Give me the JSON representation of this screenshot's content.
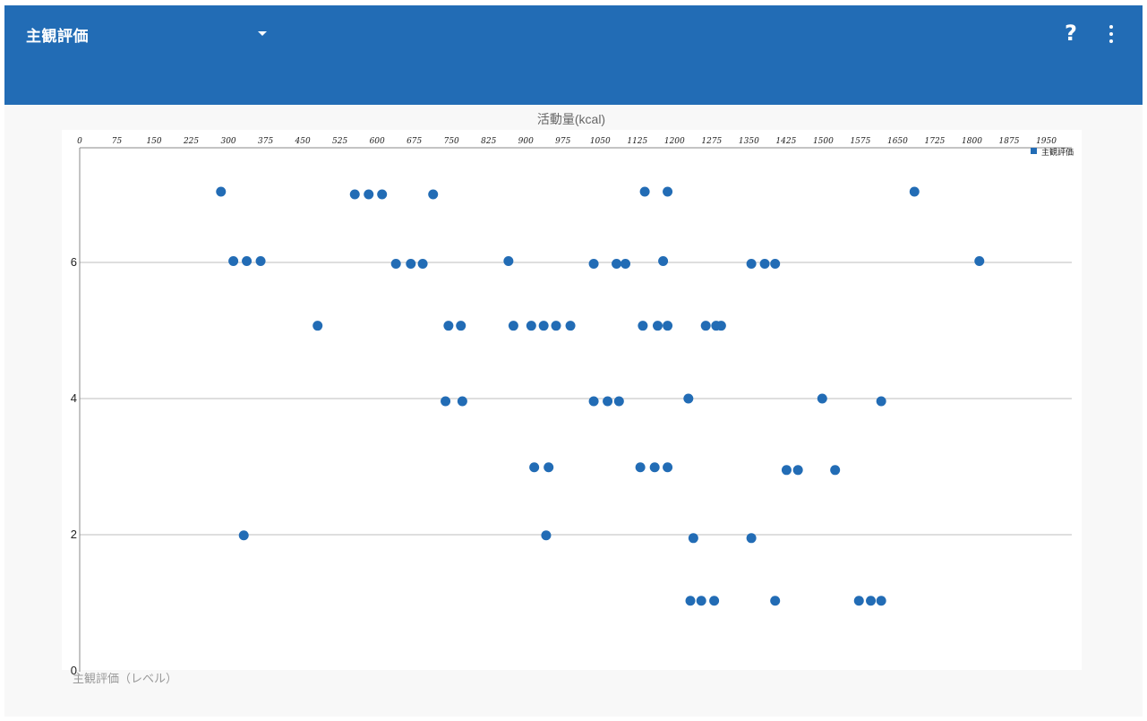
{
  "appbar": {
    "title": "主観評価",
    "help_label": "?",
    "background": "#226cb5",
    "dropdown_icon": "caret-down-icon",
    "more_icon": "more-vert-icon"
  },
  "chart_data": {
    "type": "scatter",
    "xlabel": "活動量(kcal)",
    "ylabel": "主観評価（レベル）",
    "xlim": [
      0,
      2000
    ],
    "ylim": [
      0,
      7.7
    ],
    "x_ticks": [
      "0",
      "75",
      "150",
      "225",
      "300",
      "375",
      "450",
      "525",
      "600",
      "675",
      "750",
      "825",
      "900",
      "975",
      "1050",
      "1125",
      "1200",
      "1275",
      "1350",
      "1425",
      "1500",
      "1575",
      "1650",
      "1725",
      "1800",
      "1875",
      "1950"
    ],
    "y_ticks": [
      "0",
      "2",
      "4",
      "6"
    ],
    "grid": "horizontal",
    "legend_position": "top-right",
    "color": "#226cb5",
    "series": [
      {
        "name": "主観評価",
        "points": [
          [
            285,
            7.04
          ],
          [
            555,
            7.0
          ],
          [
            583,
            7.0
          ],
          [
            610,
            7.0
          ],
          [
            713,
            7.0
          ],
          [
            1140,
            7.04
          ],
          [
            1186,
            7.04
          ],
          [
            1684,
            7.04
          ],
          [
            310,
            6.02
          ],
          [
            337,
            6.02
          ],
          [
            365,
            6.02
          ],
          [
            638,
            5.98
          ],
          [
            668,
            5.98
          ],
          [
            692,
            5.98
          ],
          [
            865,
            6.02
          ],
          [
            1037,
            5.98
          ],
          [
            1083,
            5.98
          ],
          [
            1101,
            5.98
          ],
          [
            1177,
            6.02
          ],
          [
            1355,
            5.98
          ],
          [
            1382,
            5.98
          ],
          [
            1403,
            5.98
          ],
          [
            1815,
            6.02
          ],
          [
            480,
            5.07
          ],
          [
            744,
            5.07
          ],
          [
            769,
            5.07
          ],
          [
            875,
            5.07
          ],
          [
            911,
            5.07
          ],
          [
            936,
            5.07
          ],
          [
            961,
            5.07
          ],
          [
            990,
            5.07
          ],
          [
            1136,
            5.07
          ],
          [
            1166,
            5.07
          ],
          [
            1186,
            5.07
          ],
          [
            1263,
            5.07
          ],
          [
            1284,
            5.07
          ],
          [
            1294,
            5.07
          ],
          [
            738,
            3.96
          ],
          [
            772,
            3.96
          ],
          [
            1037,
            3.96
          ],
          [
            1065,
            3.96
          ],
          [
            1088,
            3.96
          ],
          [
            1228,
            4.0
          ],
          [
            1498,
            4.0
          ],
          [
            1617,
            3.96
          ],
          [
            917,
            2.99
          ],
          [
            946,
            2.99
          ],
          [
            1131,
            2.99
          ],
          [
            1160,
            2.99
          ],
          [
            1186,
            2.99
          ],
          [
            1426,
            2.95
          ],
          [
            1449,
            2.95
          ],
          [
            1524,
            2.95
          ],
          [
            331,
            1.99
          ],
          [
            941,
            1.99
          ],
          [
            1238,
            1.95
          ],
          [
            1355,
            1.95
          ],
          [
            1232,
            1.03
          ],
          [
            1254,
            1.03
          ],
          [
            1280,
            1.03
          ],
          [
            1403,
            1.03
          ],
          [
            1572,
            1.03
          ],
          [
            1596,
            1.03
          ],
          [
            1617,
            1.03
          ]
        ]
      }
    ]
  }
}
